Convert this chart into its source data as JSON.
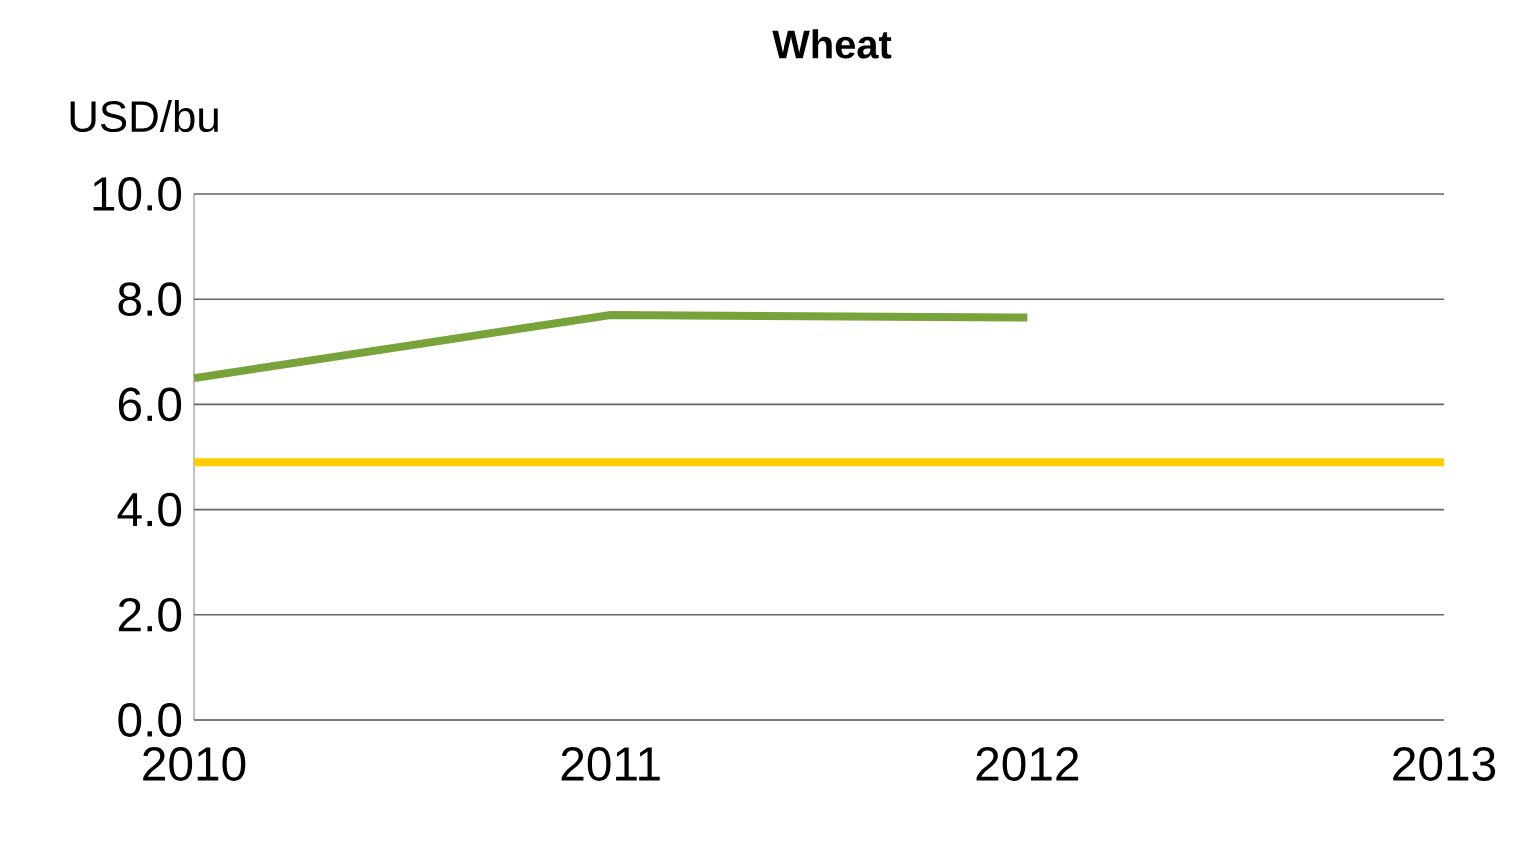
{
  "chart_data": {
    "type": "line",
    "title": "Wheat",
    "ylabel": "USD/bu",
    "x": [
      2010,
      2011,
      2012
    ],
    "series": [
      {
        "color": "#77a33a",
        "values": [
          6.5,
          7.7,
          7.65
        ]
      },
      {
        "color": "#ffcc00",
        "x": [
          2010,
          2013
        ],
        "values": [
          4.9,
          4.9
        ]
      }
    ],
    "xlim": [
      2010,
      2013
    ],
    "xticks": [
      2010,
      2011,
      2012,
      2013
    ],
    "ylim": [
      0,
      10
    ],
    "yticks": [
      {
        "value": 0,
        "label": "0.0"
      },
      {
        "value": 2,
        "label": "2.0"
      },
      {
        "value": 4,
        "label": "4.0"
      },
      {
        "value": 6,
        "label": "6.0"
      },
      {
        "value": 8,
        "label": "8.0"
      },
      {
        "value": 10,
        "label": "10.0"
      }
    ],
    "grid": "y",
    "marker": "none",
    "line_style": "solid"
  }
}
